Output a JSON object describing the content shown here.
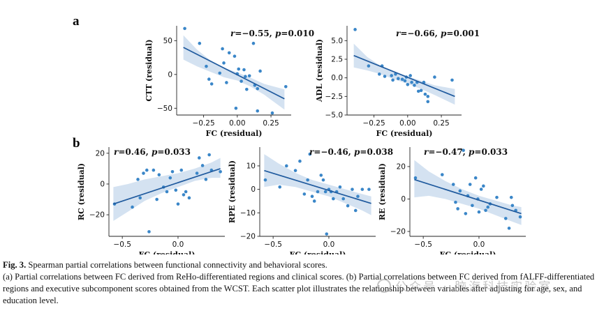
{
  "figure": {
    "panel_letters": [
      "a",
      "b"
    ]
  },
  "caption": {
    "title": "Fig. 3.",
    "title_rest": " Spearman partial correlations between functional connectivity and behavioral scores.",
    "body": "(a) Partial correlations between FC derived from ReHo-differentiated regions and clinical scores. (b) Partial correlations between FC derived from fALFF-differentiated regions and executive subcomponent scores obtained from the WCST. Each scatter plot illustrates the relationship between variables after adjusting for age, sex, and education level."
  },
  "watermark": {
    "text": "公众号 · 脑海科技实验室"
  },
  "colors": {
    "point": "#3a86c8",
    "line": "#1f5a9e",
    "band": "#c5d8ec"
  },
  "chart_data": [
    {
      "type": "scatter",
      "panel": "a",
      "ylabel": "CTT (residual)",
      "xlabel": "FC (residual)",
      "r": "−0.55",
      "p": "0.010",
      "xlim": [
        -0.45,
        0.4
      ],
      "ylim": [
        -60,
        72
      ],
      "xticks": [
        -0.25,
        0.0,
        0.25
      ],
      "xtick_labels": [
        "−0.25",
        "0.00",
        "0.25"
      ],
      "yticks": [
        -50,
        0,
        50
      ],
      "ytick_labels": [
        "−50",
        "0",
        "50"
      ],
      "fit": {
        "x": [
          -0.4,
          0.35
        ],
        "y": [
          40,
          -36
        ]
      },
      "band": {
        "upper": [
          [
            -0.4,
            58
          ],
          [
            -0.3,
            37
          ],
          [
            -0.2,
            21
          ],
          [
            -0.1,
            10
          ],
          [
            0.0,
            3
          ],
          [
            0.1,
            -5
          ],
          [
            0.2,
            -14
          ],
          [
            0.35,
            -22
          ]
        ],
        "lower": [
          [
            -0.4,
            22
          ],
          [
            -0.3,
            12
          ],
          [
            -0.2,
            4
          ],
          [
            -0.1,
            -4
          ],
          [
            0.0,
            -9
          ],
          [
            0.1,
            -18
          ],
          [
            0.2,
            -30
          ],
          [
            0.35,
            -52
          ]
        ]
      },
      "points": [
        [
          -0.39,
          68
        ],
        [
          -0.28,
          46
        ],
        [
          -0.23,
          12
        ],
        [
          -0.21,
          -7
        ],
        [
          -0.19,
          -14
        ],
        [
          -0.13,
          2
        ],
        [
          -0.11,
          38
        ],
        [
          -0.1,
          17
        ],
        [
          -0.08,
          -12
        ],
        [
          -0.06,
          32
        ],
        [
          -0.02,
          27
        ],
        [
          0.0,
          1
        ],
        [
          0.01,
          8
        ],
        [
          0.03,
          -10
        ],
        [
          0.05,
          7
        ],
        [
          0.06,
          -3
        ],
        [
          0.07,
          -22
        ],
        [
          0.09,
          -2
        ],
        [
          0.12,
          46
        ],
        [
          0.13,
          -16
        ],
        [
          0.15,
          -21
        ],
        [
          0.15,
          -54
        ],
        [
          0.17,
          5
        ],
        [
          0.26,
          -57
        ],
        [
          -0.01,
          -50
        ],
        [
          0.36,
          -18
        ]
      ]
    },
    {
      "type": "scatter",
      "panel": "a",
      "ylabel": "ADL (residual)",
      "xlabel": "FC (residual)",
      "r": "−0.66",
      "p": "0.001",
      "xlim": [
        -0.45,
        0.4
      ],
      "ylim": [
        -5.0,
        7.0
      ],
      "xticks": [
        -0.25,
        0.0,
        0.25
      ],
      "xtick_labels": [
        "−0.25",
        "0.00",
        "0.25"
      ],
      "yticks": [
        -5.0,
        -2.5,
        0.0,
        2.5,
        5.0
      ],
      "ytick_labels": [
        "−5.0",
        "−2.5",
        "0.0",
        "2.5",
        "5.0"
      ],
      "fit": {
        "x": [
          -0.4,
          0.35
        ],
        "y": [
          3.0,
          -2.5
        ]
      },
      "band": {
        "upper": [
          [
            -0.4,
            4.6
          ],
          [
            -0.3,
            2.8
          ],
          [
            -0.2,
            1.6
          ],
          [
            -0.1,
            0.8
          ],
          [
            0.0,
            0.2
          ],
          [
            0.1,
            -0.4
          ],
          [
            0.2,
            -1.0
          ],
          [
            0.35,
            -1.5
          ]
        ],
        "lower": [
          [
            -0.4,
            1.4
          ],
          [
            -0.3,
            1.0
          ],
          [
            -0.2,
            0.5
          ],
          [
            -0.1,
            -0.2
          ],
          [
            0.0,
            -0.8
          ],
          [
            0.1,
            -1.5
          ],
          [
            0.2,
            -2.3
          ],
          [
            0.35,
            -3.6
          ]
        ]
      },
      "points": [
        [
          -0.39,
          6.5
        ],
        [
          -0.29,
          1.6
        ],
        [
          -0.21,
          0.5
        ],
        [
          -0.19,
          1.6
        ],
        [
          -0.17,
          0.2
        ],
        [
          -0.12,
          0.3
        ],
        [
          -0.11,
          -0.3
        ],
        [
          -0.09,
          0.5
        ],
        [
          -0.07,
          -0.1
        ],
        [
          -0.04,
          -0.2
        ],
        [
          -0.02,
          -0.4
        ],
        [
          -0.01,
          0.1
        ],
        [
          0.0,
          -0.9
        ],
        [
          0.02,
          0.3
        ],
        [
          0.03,
          -0.6
        ],
        [
          0.05,
          -1.0
        ],
        [
          0.07,
          -0.6
        ],
        [
          0.08,
          -1.8
        ],
        [
          0.1,
          -1.7
        ],
        [
          0.12,
          -0.6
        ],
        [
          0.13,
          -2.2
        ],
        [
          0.15,
          -2.5
        ],
        [
          0.15,
          -3.2
        ],
        [
          0.2,
          0.1
        ],
        [
          0.33,
          -0.3
        ]
      ]
    },
    {
      "type": "scatter",
      "panel": "b",
      "ylabel": "RC (residual)",
      "xlabel": "FC (residual)",
      "r": "0.46",
      "p": "0.033",
      "xlim": [
        -0.62,
        0.42
      ],
      "ylim": [
        -34,
        24
      ],
      "xticks": [
        -0.5,
        0.0
      ],
      "xtick_labels": [
        "−0.5",
        "0.0"
      ],
      "yticks": [
        -20,
        0,
        20
      ],
      "ytick_labels": [
        "−20",
        "0",
        "20"
      ],
      "fit": {
        "x": [
          -0.58,
          0.38
        ],
        "y": [
          -13,
          10
        ]
      },
      "band": {
        "upper": [
          [
            -0.58,
            -2
          ],
          [
            -0.45,
            0
          ],
          [
            -0.3,
            3
          ],
          [
            -0.15,
            5
          ],
          [
            0.0,
            7
          ],
          [
            0.15,
            10
          ],
          [
            0.3,
            14
          ],
          [
            0.38,
            17
          ]
        ],
        "lower": [
          [
            -0.58,
            -24
          ],
          [
            -0.45,
            -18
          ],
          [
            -0.3,
            -11
          ],
          [
            -0.15,
            -6
          ],
          [
            0.0,
            -2
          ],
          [
            0.15,
            2
          ],
          [
            0.3,
            4
          ],
          [
            0.38,
            4
          ]
        ]
      },
      "points": [
        [
          -0.57,
          -13
        ],
        [
          -0.41,
          -15
        ],
        [
          -0.36,
          3
        ],
        [
          -0.34,
          -9
        ],
        [
          -0.31,
          7
        ],
        [
          -0.28,
          9
        ],
        [
          -0.26,
          -31
        ],
        [
          -0.22,
          9
        ],
        [
          -0.19,
          -10
        ],
        [
          -0.17,
          6
        ],
        [
          -0.13,
          -2
        ],
        [
          -0.1,
          -5
        ],
        [
          -0.07,
          4
        ],
        [
          -0.05,
          8
        ],
        [
          -0.02,
          -4
        ],
        [
          0.0,
          -13
        ],
        [
          0.03,
          9
        ],
        [
          0.05,
          -7
        ],
        [
          0.07,
          -5
        ],
        [
          0.1,
          -9
        ],
        [
          0.17,
          7
        ],
        [
          0.19,
          17
        ],
        [
          0.22,
          12
        ],
        [
          0.25,
          3
        ],
        [
          0.28,
          19
        ],
        [
          0.3,
          9
        ],
        [
          0.38,
          8
        ]
      ]
    },
    {
      "type": "scatter",
      "panel": "b",
      "ylabel": "RPE (residual)",
      "xlabel": "FC (residual)",
      "r": "−0.46",
      "p": "0.038",
      "xlim": [
        -0.62,
        0.42
      ],
      "ylim": [
        -20,
        18
      ],
      "xticks": [
        -0.5,
        0.0
      ],
      "xtick_labels": [
        "−0.5",
        "0.0"
      ],
      "yticks": [
        -20,
        -10,
        0,
        10
      ],
      "ytick_labels": [
        "−20",
        "−10",
        "0",
        "10"
      ],
      "fit": {
        "x": [
          -0.58,
          0.38
        ],
        "y": [
          8,
          -6
        ]
      },
      "band": {
        "upper": [
          [
            -0.58,
            15
          ],
          [
            -0.45,
            11
          ],
          [
            -0.3,
            7
          ],
          [
            -0.15,
            4
          ],
          [
            0.0,
            2
          ],
          [
            0.15,
            0
          ],
          [
            0.3,
            -2
          ],
          [
            0.38,
            -3
          ]
        ],
        "lower": [
          [
            -0.58,
            1
          ],
          [
            -0.45,
            2
          ],
          [
            -0.3,
            1
          ],
          [
            -0.15,
            -1
          ],
          [
            0.0,
            -3
          ],
          [
            0.15,
            -6
          ],
          [
            0.3,
            -9
          ],
          [
            0.38,
            -11
          ]
        ]
      },
      "points": [
        [
          -0.57,
          4
        ],
        [
          -0.44,
          1
        ],
        [
          -0.38,
          10
        ],
        [
          -0.3,
          8
        ],
        [
          -0.26,
          12
        ],
        [
          -0.22,
          -2
        ],
        [
          -0.19,
          4
        ],
        [
          -0.17,
          15
        ],
        [
          -0.15,
          -3
        ],
        [
          -0.13,
          -5
        ],
        [
          -0.1,
          -1
        ],
        [
          -0.07,
          6
        ],
        [
          -0.05,
          4
        ],
        [
          -0.03,
          -1
        ],
        [
          -0.02,
          -19
        ],
        [
          0.0,
          0
        ],
        [
          0.02,
          -1
        ],
        [
          0.04,
          -4
        ],
        [
          0.07,
          -1
        ],
        [
          0.1,
          1
        ],
        [
          0.13,
          -4
        ],
        [
          0.17,
          -7
        ],
        [
          0.21,
          0
        ],
        [
          0.24,
          -9
        ],
        [
          0.26,
          -3
        ],
        [
          0.3,
          0
        ],
        [
          0.36,
          0
        ]
      ]
    },
    {
      "type": "scatter",
      "panel": "b",
      "ylabel": "RE (residual)",
      "xlabel": "FC (residual)",
      "r": "−0.47",
      "p": "0.033",
      "xlim": [
        -0.62,
        0.42
      ],
      "ylim": [
        -23,
        32
      ],
      "xticks": [
        -0.5,
        0.0
      ],
      "xtick_labels": [
        "−0.5",
        "0.0"
      ],
      "yticks": [
        -20,
        0,
        20
      ],
      "ytick_labels": [
        "−20",
        "0",
        "20"
      ],
      "fit": {
        "x": [
          -0.58,
          0.38
        ],
        "y": [
          12,
          -9
        ]
      },
      "band": {
        "upper": [
          [
            -0.58,
            24
          ],
          [
            -0.45,
            17
          ],
          [
            -0.3,
            11
          ],
          [
            -0.15,
            6
          ],
          [
            0.0,
            2
          ],
          [
            0.15,
            -1
          ],
          [
            0.3,
            -4
          ],
          [
            0.38,
            -5
          ]
        ],
        "lower": [
          [
            -0.58,
            1
          ],
          [
            -0.45,
            2
          ],
          [
            -0.3,
            0
          ],
          [
            -0.15,
            -3
          ],
          [
            0.0,
            -6
          ],
          [
            0.15,
            -10
          ],
          [
            0.3,
            -14
          ],
          [
            0.38,
            -16
          ]
        ]
      },
      "points": [
        [
          -0.57,
          13
        ],
        [
          -0.33,
          15
        ],
        [
          -0.23,
          9
        ],
        [
          -0.21,
          -2
        ],
        [
          -0.19,
          -6
        ],
        [
          -0.17,
          5
        ],
        [
          -0.14,
          30
        ],
        [
          -0.12,
          -9
        ],
        [
          -0.1,
          2
        ],
        [
          -0.08,
          9
        ],
        [
          -0.06,
          -4
        ],
        [
          -0.03,
          13
        ],
        [
          -0.01,
          0
        ],
        [
          0.0,
          -8
        ],
        [
          0.02,
          6
        ],
        [
          0.04,
          8
        ],
        [
          0.06,
          -7
        ],
        [
          0.08,
          -5
        ],
        [
          0.1,
          -3
        ],
        [
          0.16,
          1
        ],
        [
          0.24,
          -12
        ],
        [
          0.27,
          -18
        ],
        [
          0.29,
          1
        ],
        [
          0.3,
          -4
        ],
        [
          0.33,
          -7
        ],
        [
          0.37,
          -11
        ]
      ]
    }
  ]
}
